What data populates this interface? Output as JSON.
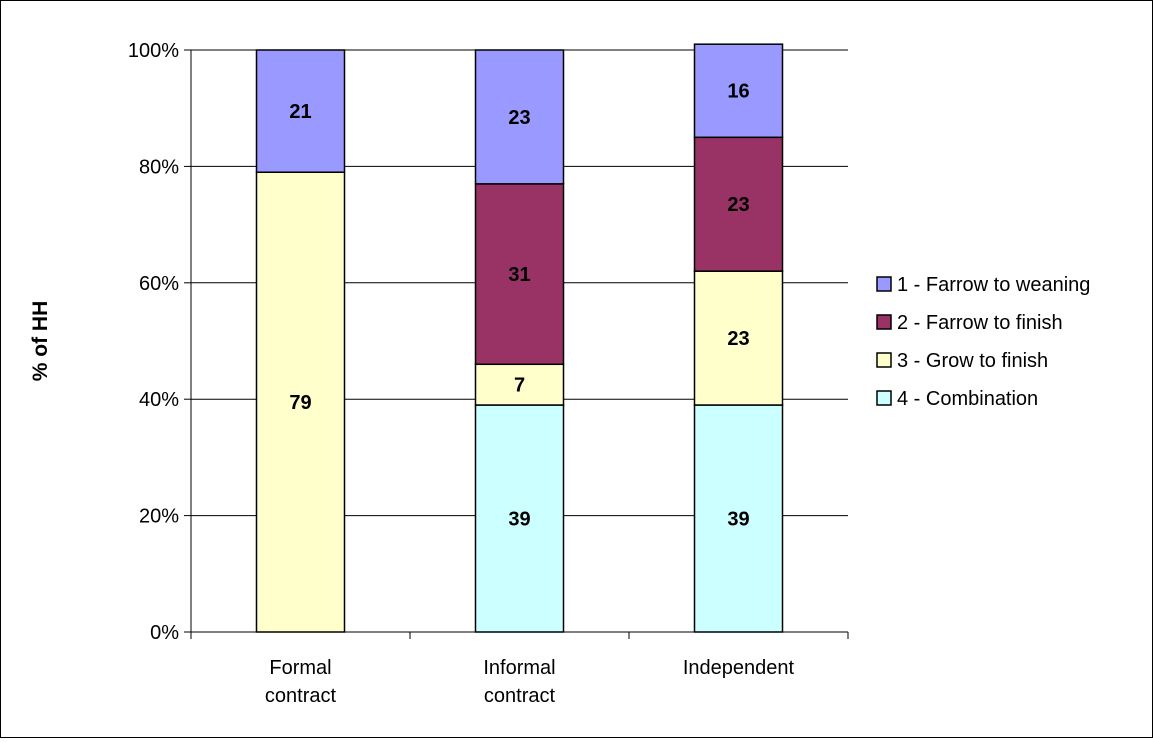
{
  "chart_data": {
    "type": "bar",
    "stacked": true,
    "title": "",
    "xlabel": "",
    "ylabel": "% of HH",
    "ylim": [
      0,
      100
    ],
    "yticks": [
      "0%",
      "20%",
      "40%",
      "60%",
      "80%",
      "100%"
    ],
    "ytick_values": [
      0,
      20,
      40,
      60,
      80,
      100
    ],
    "categories": [
      [
        "Formal",
        "contract"
      ],
      [
        "Informal",
        "contract"
      ],
      [
        "Independent"
      ]
    ],
    "series": [
      {
        "name": "4 - Combination",
        "color": "#CCFFFF",
        "values": [
          0,
          39,
          39
        ]
      },
      {
        "name": "3 - Grow to finish",
        "color": "#FFFFCC",
        "values": [
          79,
          7,
          23
        ]
      },
      {
        "name": "2 - Farrow to finish",
        "color": "#993366",
        "values": [
          0,
          31,
          23
        ]
      },
      {
        "name": "1 - Farrow to weaning",
        "color": "#9999FF",
        "values": [
          21,
          23,
          16
        ]
      }
    ],
    "legend_order": [
      3,
      2,
      1,
      0
    ],
    "legend_position": "right",
    "grid": true,
    "gridline_color": "#000000"
  }
}
